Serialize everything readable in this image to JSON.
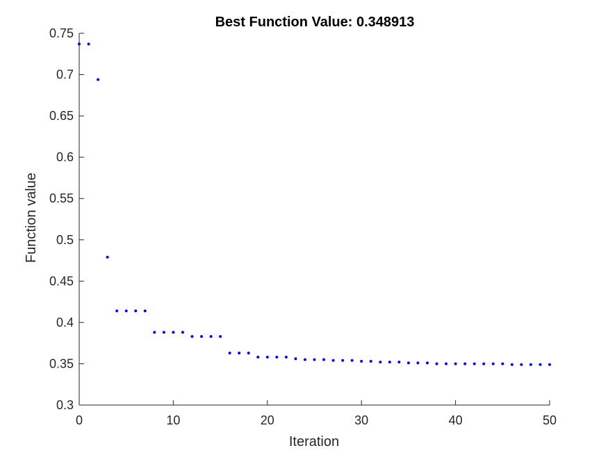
{
  "chart_data": {
    "type": "scatter",
    "title": "Best Function Value: 0.348913",
    "xlabel": "Iteration",
    "ylabel": "Function value",
    "xlim": [
      0,
      50
    ],
    "ylim": [
      0.3,
      0.75
    ],
    "x_ticks": [
      0,
      10,
      20,
      30,
      40,
      50
    ],
    "x_tick_labels": [
      "0",
      "10",
      "20",
      "30",
      "40",
      "50"
    ],
    "y_ticks": [
      0.3,
      0.35,
      0.4,
      0.45,
      0.5,
      0.55,
      0.6,
      0.65,
      0.7,
      0.75
    ],
    "y_tick_labels": [
      "0.3",
      "0.35",
      "0.4",
      "0.45",
      "0.5",
      "0.55",
      "0.6",
      "0.65",
      "0.7",
      "0.75"
    ],
    "grid": false,
    "marker_color": "#0000ff",
    "axis_color": "#262626",
    "x": [
      0,
      1,
      2,
      3,
      4,
      5,
      6,
      7,
      8,
      9,
      10,
      11,
      12,
      13,
      14,
      15,
      16,
      17,
      18,
      19,
      20,
      21,
      22,
      23,
      24,
      25,
      26,
      27,
      28,
      29,
      30,
      31,
      32,
      33,
      34,
      35,
      36,
      37,
      38,
      39,
      40,
      41,
      42,
      43,
      44,
      45,
      46,
      47,
      48,
      49,
      50
    ],
    "y": [
      0.737,
      0.737,
      0.694,
      0.479,
      0.414,
      0.414,
      0.414,
      0.414,
      0.388,
      0.388,
      0.388,
      0.388,
      0.383,
      0.383,
      0.383,
      0.383,
      0.363,
      0.363,
      0.363,
      0.358,
      0.358,
      0.358,
      0.358,
      0.356,
      0.355,
      0.355,
      0.355,
      0.354,
      0.354,
      0.354,
      0.353,
      0.353,
      0.352,
      0.352,
      0.352,
      0.351,
      0.351,
      0.351,
      0.35,
      0.35,
      0.35,
      0.35,
      0.35,
      0.35,
      0.35,
      0.35,
      0.349,
      0.349,
      0.349,
      0.349,
      0.349
    ]
  }
}
